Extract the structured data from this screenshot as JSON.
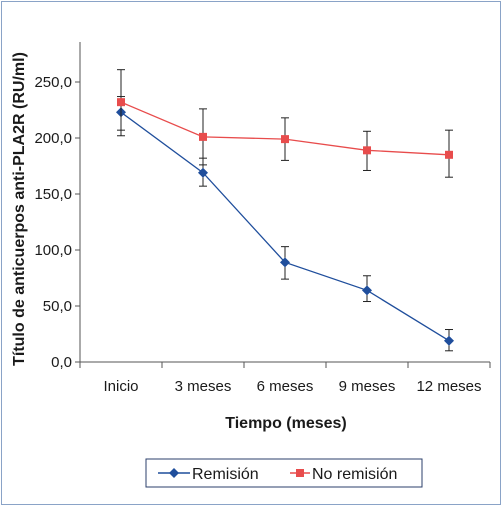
{
  "chart_data": {
    "type": "line",
    "xlabel": "Tiempo (meses)",
    "ylabel": "Título de anticuerpos anti-PLA2R (RU/ml)",
    "categories": [
      "Inicio",
      "3 meses",
      "6 meses",
      "9 meses",
      "12 meses"
    ],
    "ylim": [
      0,
      250
    ],
    "yticks": [
      "0,0",
      "50,0",
      "100,0",
      "150,0",
      "200,0",
      "250,0"
    ],
    "grid": false,
    "legend_position": "bottom",
    "series": [
      {
        "name": "Remisión",
        "color": "#1f4e9c",
        "marker": "diamond",
        "values": [
          223,
          169,
          89,
          64,
          19
        ],
        "err_low": [
          207,
          157,
          74,
          54,
          10
        ],
        "err_high": [
          237,
          182,
          103,
          77,
          29
        ]
      },
      {
        "name": "No remisión",
        "color": "#e84c4c",
        "marker": "square",
        "values": [
          232,
          201,
          199,
          189,
          185
        ],
        "err_low": [
          202,
          176,
          180,
          171,
          165
        ],
        "err_high": [
          261,
          226,
          218,
          206,
          207
        ]
      }
    ]
  }
}
